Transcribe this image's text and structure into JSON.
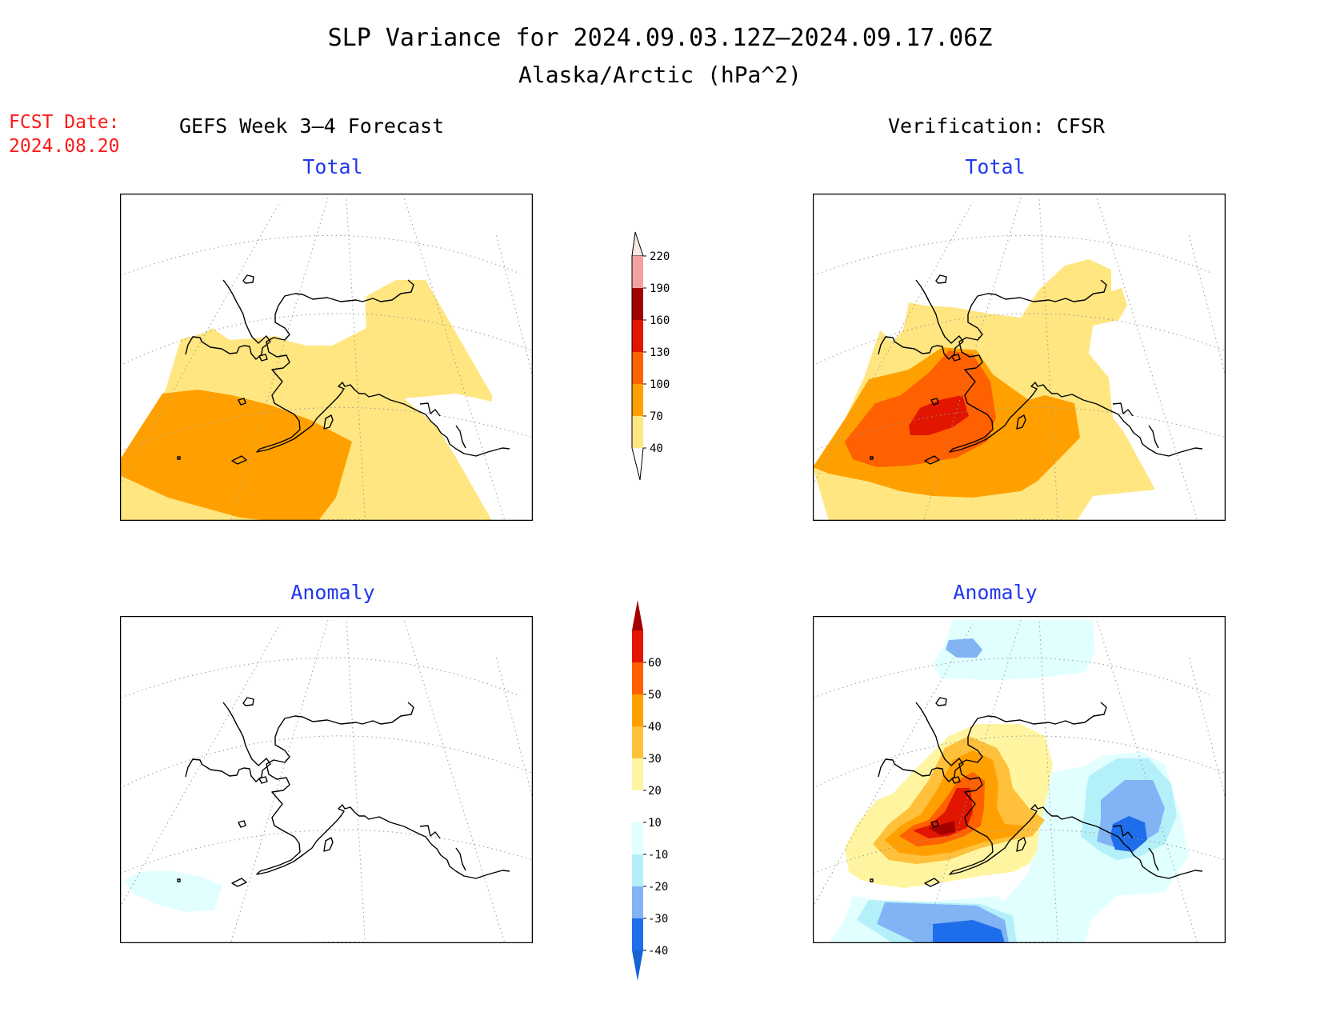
{
  "title": "SLP Variance for 2024.09.03.12Z–2024.09.17.06Z",
  "subtitle": "Alaska/Arctic (hPa^2)",
  "fcst_date": {
    "label": "FCST Date:",
    "value": "2024.08.20"
  },
  "columns": {
    "left": "GEFS Week 3–4 Forecast",
    "right": "Verification: CFSR"
  },
  "panels": {
    "forecast_total": {
      "title": "Total"
    },
    "forecast_anomaly": {
      "title": "Anomaly"
    },
    "verification_total": {
      "title": "Total"
    },
    "verification_anomaly": {
      "title": "Anomaly"
    }
  },
  "colorbars": {
    "total": {
      "labels": [
        "40",
        "70",
        "100",
        "130",
        "160",
        "190",
        "220"
      ],
      "colors": [
        "#ffe680",
        "#ffa000",
        "#ff6000",
        "#e11500",
        "#a50000",
        "#f4a0a0",
        "#fce6e6"
      ]
    },
    "anomaly": {
      "labels": [
        "-40",
        "-30",
        "-20",
        "-10",
        "10",
        "20",
        "30",
        "40",
        "50",
        "60"
      ],
      "colors": [
        "#1464d2",
        "#1e6eeb",
        "#82b4f5",
        "#b4f0fa",
        "#e1ffff",
        "#ffffff",
        "#fff5a0",
        "#ffc03c",
        "#ffa000",
        "#ff6000",
        "#e11500",
        "#a50000"
      ]
    }
  },
  "palette": {
    "yellow": "#ffe680",
    "orange": "#ffa000",
    "dark_orange": "#ff6000",
    "red": "#e11500",
    "dark_red": "#a50000",
    "pale_yellow": "#fff5a0",
    "light_orange": "#ffc03c",
    "light_cyan": "#e1ffff",
    "cyan": "#b4f0fa",
    "light_blue": "#82b4f5",
    "blue": "#1e6eeb",
    "deep_blue": "#1464d2",
    "title_blue": "#2238ee",
    "fcst_red": "#ff1a1a"
  }
}
